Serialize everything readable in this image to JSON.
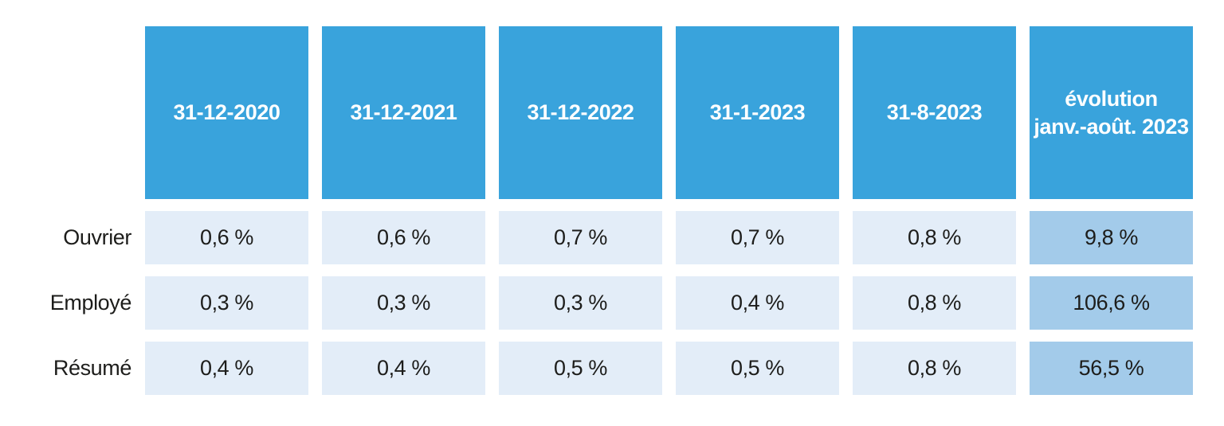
{
  "chart_data": {
    "type": "table",
    "columns": [
      "31-12-2020",
      "31-12-2021",
      "31-12-2022",
      "31-1-2023",
      "31-8-2023",
      "évolution\njanv.-août. 2023"
    ],
    "rows": [
      {
        "label": "Ouvrier",
        "values": [
          "0,6 %",
          "0,6 %",
          "0,7 %",
          "0,7 %",
          "0,8 %",
          "9,8 %"
        ]
      },
      {
        "label": "Employé",
        "values": [
          "0,3 %",
          "0,3 %",
          "0,3 %",
          "0,4 %",
          "0,8 %",
          "106,6 %"
        ]
      },
      {
        "label": "Résumé",
        "values": [
          "0,4 %",
          "0,4 %",
          "0,5 %",
          "0,5 %",
          "0,8 %",
          "56,5 %"
        ]
      }
    ],
    "layout": {
      "legend_position": "none",
      "grid": "off",
      "highlight_column": "évolution janv.-août. 2023"
    },
    "colors": {
      "header_bg": "#39a3dc",
      "header_text": "#ffffff",
      "cell_bg": "#e3edf8",
      "highlight_bg": "#a3cbea",
      "cell_text": "#1d1d1b",
      "page_bg": "#ffffff"
    }
  }
}
